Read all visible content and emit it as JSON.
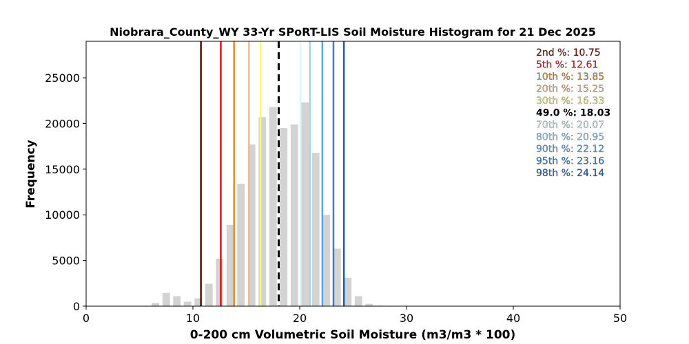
{
  "chart_data": {
    "type": "bar",
    "title": "Niobrara_County_WY 33-Yr SPoRT-LIS Soil Moisture Histogram for 21 Dec 2025",
    "xlabel": "0-200 cm Volumetric Soil Moisture (m3/m3 * 100)",
    "ylabel": "Frequency",
    "xlim": [
      0,
      50
    ],
    "ylim": [
      0,
      29000
    ],
    "xticks": [
      0,
      10,
      20,
      30,
      40,
      50
    ],
    "yticks": [
      0,
      5000,
      10000,
      15000,
      20000,
      25000
    ],
    "bin_width": 1.0,
    "bar_color": "#d3d3d3",
    "bins": [
      {
        "x": 6.5,
        "count": 350
      },
      {
        "x": 7.5,
        "count": 1450
      },
      {
        "x": 8.5,
        "count": 1100
      },
      {
        "x": 9.5,
        "count": 500
      },
      {
        "x": 10.5,
        "count": 850
      },
      {
        "x": 11.5,
        "count": 2450
      },
      {
        "x": 12.5,
        "count": 5200
      },
      {
        "x": 13.5,
        "count": 8900
      },
      {
        "x": 14.5,
        "count": 13400
      },
      {
        "x": 15.5,
        "count": 17700
      },
      {
        "x": 16.5,
        "count": 20700
      },
      {
        "x": 17.5,
        "count": 21800
      },
      {
        "x": 18.5,
        "count": 19500
      },
      {
        "x": 19.5,
        "count": 19900
      },
      {
        "x": 20.5,
        "count": 22300
      },
      {
        "x": 21.5,
        "count": 16800
      },
      {
        "x": 22.5,
        "count": 10000
      },
      {
        "x": 23.5,
        "count": 6300
      },
      {
        "x": 24.5,
        "count": 3100
      },
      {
        "x": 25.5,
        "count": 1100
      },
      {
        "x": 26.5,
        "count": 250
      },
      {
        "x": 27.5,
        "count": 60
      }
    ],
    "percentiles": [
      {
        "label": "2nd %",
        "value": "10.75",
        "x": 10.75,
        "color": "#5a0e00",
        "dashed": false
      },
      {
        "label": "5th %",
        "value": "12.61",
        "x": 12.61,
        "color": "#e01010",
        "dashed": false
      },
      {
        "label": "10th %",
        "value": "13.85",
        "x": 13.85,
        "color": "#f08a1c",
        "dashed": false
      },
      {
        "label": "20th %",
        "value": "15.25",
        "x": 15.25,
        "color": "#f7b98a",
        "dashed": false
      },
      {
        "label": "30th %",
        "value": "16.33",
        "x": 16.33,
        "color": "#fbf77a",
        "dashed": false
      },
      {
        "label": "49.0 %",
        "value": "18.03",
        "x": 18.03,
        "color": "#000000",
        "dashed": true
      },
      {
        "label": "70th %",
        "value": "20.07",
        "x": 20.07,
        "color": "#d8f6fb",
        "dashed": false
      },
      {
        "label": "80th %",
        "value": "20.95",
        "x": 20.95,
        "color": "#9dd3f0",
        "dashed": false
      },
      {
        "label": "90th %",
        "value": "22.12",
        "x": 22.12,
        "color": "#5aa6e4",
        "dashed": false
      },
      {
        "label": "95th %",
        "value": "23.16",
        "x": 23.16,
        "color": "#2f84d8",
        "dashed": false
      },
      {
        "label": "98th %",
        "value": "24.14",
        "x": 24.14,
        "color": "#1d5cb8",
        "dashed": false
      }
    ],
    "legend_placement": "top-right",
    "grid": false
  }
}
